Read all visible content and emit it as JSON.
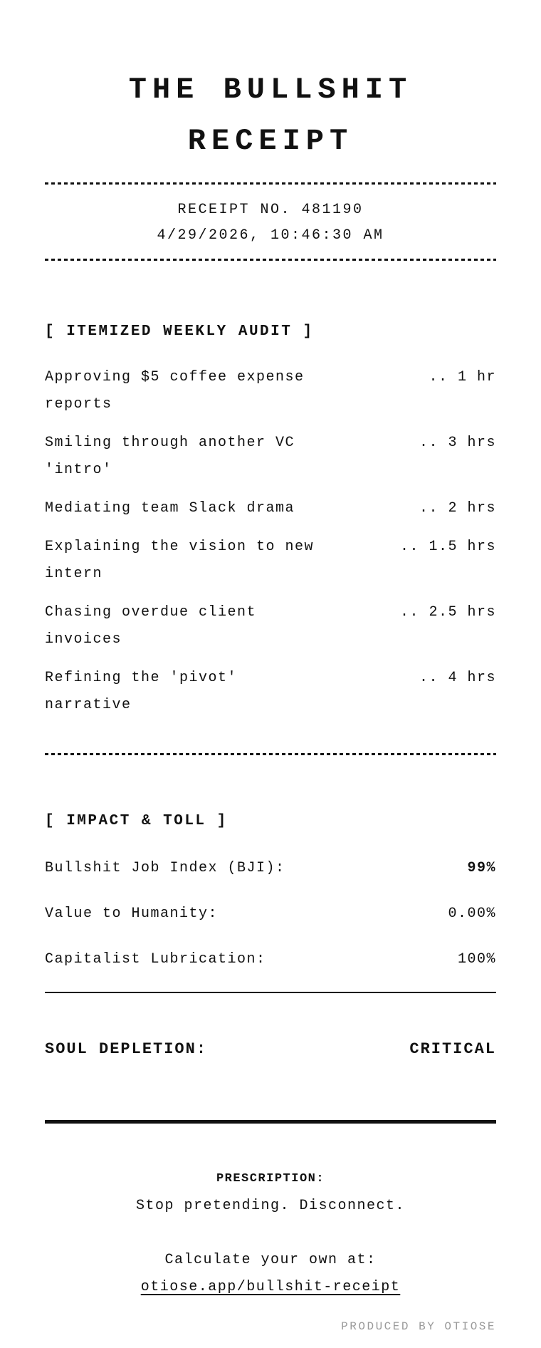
{
  "receipt": {
    "title_line1": "THE BULLSHIT",
    "title_line2": "RECEIPT",
    "receipt_no": "RECEIPT NO. 481190",
    "datetime": "4/29/2026, 10:46:30 AM",
    "sections": {
      "audit": {
        "header": "[ ITEMIZED WEEKLY AUDIT ]",
        "items": [
          {
            "label": "Approving $5 coffee expense reports",
            "value": ".. 1 hr"
          },
          {
            "label": "Smiling through another VC 'intro'",
            "value": ".. 3 hrs"
          },
          {
            "label": "Mediating team Slack drama",
            "value": ".. 2 hrs"
          },
          {
            "label": "Explaining the vision to new intern",
            "value": ".. 1.5 hrs"
          },
          {
            "label": "Chasing overdue client invoices",
            "value": ".. 2.5 hrs"
          },
          {
            "label": "Refining the 'pivot' narrative",
            "value": ".. 4 hrs"
          }
        ]
      },
      "impact": {
        "header": "[ IMPACT & TOLL ]",
        "rows": [
          {
            "label": "Bullshit Job Index (BJI):",
            "value": "99%"
          },
          {
            "label": "Value to Humanity:",
            "value": "0.00%"
          },
          {
            "label": "Capitalist Lubrication:",
            "value": "100%"
          }
        ]
      },
      "soul": {
        "label": "SOUL DEPLETION:",
        "value": "CRITICAL"
      }
    },
    "footer": {
      "prescription_label": "PRESCRIPTION:",
      "prescription_text": "Stop pretending. Disconnect.",
      "cta_text": "Calculate your own at:",
      "link_text": "otiose.app/bullshit-receipt",
      "produced_by": "PRODUCED BY OTIOSE"
    },
    "colors": {
      "ink": "#111111",
      "muted": "#9a9a9a",
      "paper": "#ffffff"
    }
  }
}
